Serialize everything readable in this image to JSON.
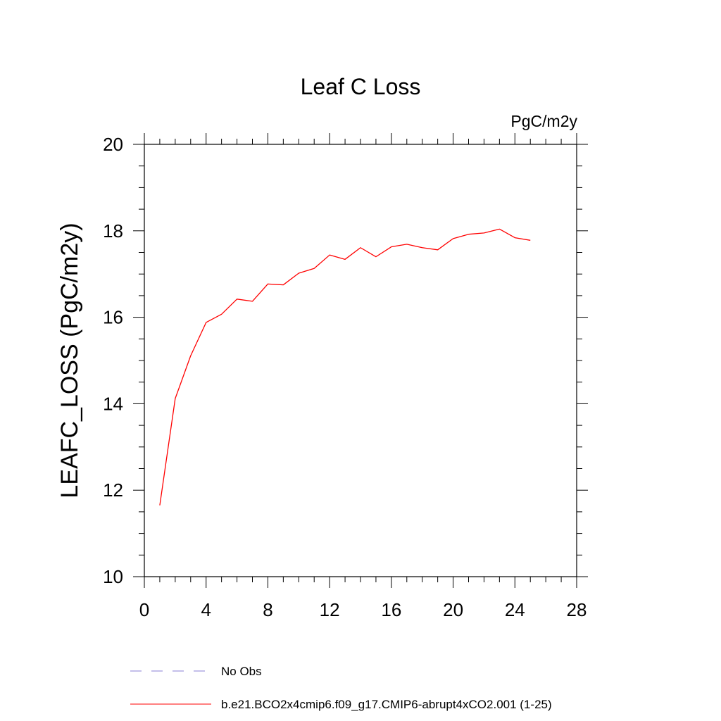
{
  "chart_data": {
    "type": "line",
    "title": "Leaf C Loss",
    "units_label": "PgC/m2y",
    "xlabel": "",
    "ylabel": "LEAFC_LOSS  (PgC/m2y)",
    "xlim": [
      0,
      28
    ],
    "ylim": [
      10,
      20
    ],
    "x_ticks": [
      0,
      4,
      8,
      12,
      16,
      20,
      24,
      28
    ],
    "y_ticks": [
      10,
      12,
      14,
      16,
      18,
      20
    ],
    "grid": false,
    "legend_position": "bottom",
    "series": [
      {
        "name": "b.e21.BCO2x4cmip6.f09_g17.CMIP6-abrupt4xCO2.001 (1-25)",
        "color": "#ff0000",
        "dash": "solid",
        "x": [
          1,
          2,
          3,
          4,
          5,
          6,
          7,
          8,
          9,
          10,
          11,
          12,
          13,
          14,
          15,
          16,
          17,
          18,
          19,
          20,
          21,
          22,
          23,
          24,
          25
        ],
        "y": [
          11.65,
          14.12,
          15.11,
          15.88,
          16.07,
          16.42,
          16.37,
          16.77,
          16.75,
          17.02,
          17.13,
          17.44,
          17.34,
          17.61,
          17.4,
          17.63,
          17.69,
          17.61,
          17.56,
          17.82,
          17.92,
          17.95,
          18.04,
          17.84,
          17.78
        ]
      }
    ],
    "legend": [
      {
        "label": "No Obs",
        "color": "#8a7fd6",
        "dash": "dashed"
      },
      {
        "label": "b.e21.BCO2x4cmip6.f09_g17.CMIP6-abrupt4xCO2.001 (1-25)",
        "color": "#ff0000",
        "dash": "solid"
      }
    ]
  }
}
